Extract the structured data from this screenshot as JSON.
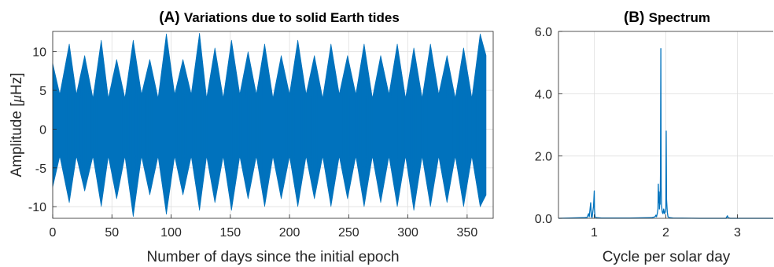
{
  "chart_data": [
    {
      "type": "line",
      "panel_letter": "(A)",
      "title": "Variations due to solid Earth tides",
      "xlabel": "Number of days since the initial epoch",
      "ylabel": "Amplitude [μHz]",
      "ylabel_prefix": "Amplitude [",
      "ylabel_mu": "μ",
      "ylabel_suffix": "Hz]",
      "xlim": [
        0,
        372
      ],
      "ylim": [
        -11.5,
        12.6
      ],
      "xticks": [
        0,
        50,
        100,
        150,
        200,
        250,
        300,
        350
      ],
      "yticks": [
        -10,
        -5,
        0,
        5,
        10
      ],
      "ytick_labels": [
        "-10",
        "-5",
        "0",
        "5",
        "10"
      ],
      "grid": true,
      "series": [
        {
          "color": "#0072BD",
          "envelope": {
            "x": [
              0,
              6,
              14,
              20,
              27,
              34,
              41,
              47,
              54,
              61,
              68,
              75,
              82,
              89,
              96,
              103,
              110,
              117,
              124,
              130,
              137,
              144,
              151,
              158,
              165,
              172,
              179,
              186,
              193,
              200,
              207,
              214,
              221,
              228,
              235,
              242,
              249,
              256,
              263,
              270,
              277,
              284,
              291,
              298,
              305,
              312,
              319,
              326,
              333,
              340,
              347,
              354,
              361,
              366
            ],
            "upper": [
              8.5,
              4.5,
              11.0,
              4.5,
              9.5,
              4.0,
              11.5,
              4.0,
              9.0,
              4.0,
              11.5,
              4.5,
              9.0,
              4.0,
              12.3,
              4.5,
              9.0,
              4.5,
              12.4,
              4.0,
              10.5,
              4.0,
              11.5,
              4.5,
              10.0,
              4.5,
              11.0,
              4.0,
              9.5,
              4.5,
              11.5,
              4.5,
              9.5,
              4.0,
              11.0,
              4.5,
              9.5,
              4.5,
              11.0,
              4.0,
              9.5,
              4.5,
              11.0,
              4.0,
              10.5,
              4.0,
              11.0,
              4.5,
              9.5,
              4.0,
              10.5,
              4.0,
              12.3,
              9.5
            ],
            "lower": [
              -7.5,
              -3.5,
              -9.5,
              -3.5,
              -8.0,
              -3.5,
              -10.0,
              -3.5,
              -9.0,
              -3.5,
              -11.3,
              -3.5,
              -8.5,
              -3.5,
              -11.0,
              -3.5,
              -8.5,
              -3.5,
              -10.5,
              -3.5,
              -9.5,
              -3.5,
              -10.5,
              -3.5,
              -9.0,
              -3.5,
              -10.0,
              -3.5,
              -9.0,
              -3.5,
              -10.0,
              -3.5,
              -9.0,
              -3.5,
              -10.0,
              -3.5,
              -9.0,
              -3.5,
              -10.0,
              -3.5,
              -9.5,
              -3.5,
              -10.0,
              -3.5,
              -10.5,
              -3.5,
              -10.0,
              -3.5,
              -9.5,
              -3.5,
              -10.0,
              -3.5,
              -10.0,
              -8.5
            ]
          }
        }
      ]
    },
    {
      "type": "line",
      "panel_letter": "(B)",
      "title": "Spectrum",
      "xlabel": "Cycle per solar day",
      "ylabel": "",
      "xlim": [
        0.5,
        3.5
      ],
      "ylim": [
        0,
        6.0
      ],
      "xticks": [
        1,
        2,
        3
      ],
      "yticks": [
        0,
        2,
        4,
        6
      ],
      "ytick_labels": [
        "0.0",
        "2.0",
        "4.0",
        "6.0"
      ],
      "grid": true,
      "series": [
        {
          "color": "#0072BD",
          "x": [
            0.5,
            0.85,
            0.9,
            0.92,
            0.93,
            0.95,
            0.96,
            0.97,
            0.99,
            1.0,
            1.003,
            1.01,
            1.03,
            1.1,
            1.5,
            1.8,
            1.85,
            1.86,
            1.87,
            1.88,
            1.89,
            1.895,
            1.9,
            1.905,
            1.91,
            1.915,
            1.92,
            1.925,
            1.93,
            1.935,
            1.94,
            1.95,
            1.96,
            1.97,
            1.98,
            1.99,
            2.0,
            2.005,
            2.01,
            2.02,
            2.03,
            2.05,
            2.1,
            2.5,
            2.84,
            2.86,
            2.87,
            2.9,
            3.5
          ],
          "y": [
            0.0,
            0.02,
            0.03,
            0.15,
            0.05,
            0.5,
            0.05,
            0.03,
            0.4,
            0.88,
            0.3,
            0.05,
            0.02,
            0.01,
            0.01,
            0.02,
            0.05,
            0.1,
            0.05,
            0.15,
            0.3,
            1.1,
            0.5,
            0.85,
            0.3,
            0.5,
            0.45,
            1.5,
            5.45,
            1.0,
            0.4,
            0.2,
            0.15,
            0.3,
            0.15,
            0.2,
            0.3,
            2.8,
            0.6,
            0.2,
            0.05,
            0.02,
            0.01,
            0.0,
            0.0,
            0.08,
            0.02,
            0.0,
            0.0
          ]
        }
      ]
    }
  ]
}
